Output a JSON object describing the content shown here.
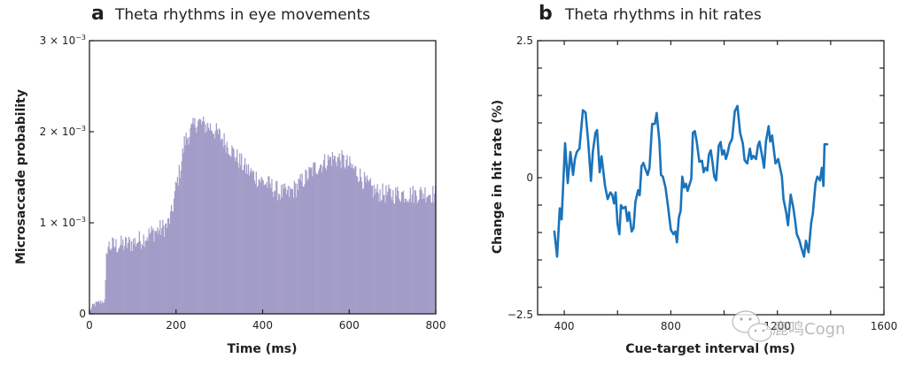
{
  "chart_data": [
    {
      "type": "bar",
      "panel_letter": "a",
      "title": "Theta rhythms in eye movements",
      "xlabel": "Time (ms)",
      "ylabel": "Microsaccade probability",
      "xlim": [
        0,
        800
      ],
      "ylim": [
        0,
        0.003
      ],
      "xticks": [
        0,
        200,
        400,
        600,
        800
      ],
      "xtick_labels": [
        "0",
        "200",
        "400",
        "600",
        "800"
      ],
      "yticks": [
        0,
        0.001,
        0.002,
        0.003
      ],
      "ytick_labels": [
        {
          "base": "0",
          "exp": ""
        },
        {
          "base": "1 × 10",
          "exp": "−3"
        },
        {
          "base": "2 × 10",
          "exp": "−3"
        },
        {
          "base": "3 × 10",
          "exp": "−3"
        }
      ],
      "bar_color": "#a29dc8",
      "bin_width_ms": 2,
      "profile_ms": [
        0,
        10,
        20,
        32,
        36,
        40,
        60,
        80,
        100,
        120,
        140,
        160,
        180,
        190,
        200,
        210,
        220,
        240,
        250,
        260,
        280,
        300,
        320,
        340,
        360,
        380,
        400,
        420,
        440,
        460,
        480,
        500,
        520,
        540,
        560,
        580,
        600,
        620,
        640,
        660,
        680,
        700,
        720,
        740,
        760,
        780,
        800
      ],
      "profile_values": [
        3e-05,
        0.0001,
        0.00012,
        0.00014,
        0.00014,
        0.00074,
        0.00075,
        0.00076,
        0.00078,
        0.00082,
        0.00088,
        0.00092,
        0.00097,
        0.0011,
        0.0014,
        0.0016,
        0.0019,
        0.00205,
        0.00212,
        0.00208,
        0.00205,
        0.00196,
        0.00185,
        0.00172,
        0.0016,
        0.00152,
        0.00145,
        0.0014,
        0.00133,
        0.00132,
        0.0014,
        0.0015,
        0.0016,
        0.00166,
        0.00171,
        0.0017,
        0.00163,
        0.00155,
        0.00142,
        0.00134,
        0.00132,
        0.00131,
        0.00132,
        0.00131,
        0.00132,
        0.00133,
        0.00131
      ]
    },
    {
      "type": "line",
      "panel_letter": "b",
      "title": "Theta rhythms in hit rates",
      "xlabel": "Cue-target interval (ms)",
      "ylabel": "Change in hit rate (%)",
      "xlim": [
        300,
        1600
      ],
      "ylim": [
        -2.5,
        2.5
      ],
      "xticks_major": [
        400,
        800,
        1200,
        1600
      ],
      "xtick_labels": [
        "400",
        "800",
        "1200",
        "1600"
      ],
      "xticks_minor": [
        600,
        1000,
        1400
      ],
      "yticks": [
        -2.5,
        -2,
        -1.5,
        -1,
        -0.5,
        0,
        0.5,
        1,
        1.5,
        2,
        2.5
      ],
      "ytick_labels": {
        "-2.5": "−2.5",
        "0": "0",
        "2.5": "2.5"
      },
      "line_color": "#1a73bb",
      "series": [
        {
          "name": "hit rate change",
          "x": [
            363,
            373,
            383,
            390,
            403,
            413,
            423,
            433,
            440,
            447,
            457,
            470,
            480,
            490,
            500,
            507,
            517,
            523,
            533,
            540,
            553,
            563,
            573,
            580,
            587,
            593,
            600,
            607,
            613,
            620,
            630,
            637,
            643,
            653,
            660,
            667,
            677,
            683,
            690,
            697,
            703,
            713,
            720,
            730,
            740,
            747,
            757,
            763,
            770,
            780,
            790,
            800,
            810,
            817,
            823,
            830,
            837,
            843,
            850,
            857,
            863,
            877,
            883,
            890,
            897,
            907,
            917,
            923,
            930,
            937,
            943,
            950,
            957,
            963,
            970,
            980,
            987,
            993,
            1000,
            1007,
            1013,
            1020,
            1030,
            1040,
            1050,
            1060,
            1070,
            1077,
            1087,
            1097,
            1103,
            1110,
            1120,
            1127,
            1133,
            1143,
            1150,
            1157,
            1167,
            1173,
            1180,
            1193,
            1203,
            1217,
            1223,
            1233,
            1240,
            1250,
            1260,
            1267,
            1273,
            1283,
            1290,
            1300,
            1307,
            1317,
            1327,
            1333,
            1343,
            1350,
            1360,
            1367,
            1373,
            1377,
            1387
          ],
          "y": [
            -0.98,
            -1.44,
            -0.56,
            -0.76,
            0.63,
            -0.1,
            0.47,
            0.05,
            0.34,
            0.47,
            0.53,
            1.23,
            1.19,
            0.66,
            -0.06,
            0.47,
            0.82,
            0.87,
            0.1,
            0.39,
            -0.15,
            -0.39,
            -0.27,
            -0.31,
            -0.47,
            -0.27,
            -0.84,
            -1.03,
            -0.5,
            -0.56,
            -0.53,
            -0.79,
            -0.63,
            -0.98,
            -0.92,
            -0.44,
            -0.23,
            -0.32,
            0.21,
            0.27,
            0.18,
            0.05,
            0.18,
            0.98,
            0.98,
            1.18,
            0.66,
            0.05,
            0.02,
            -0.18,
            -0.55,
            -0.95,
            -1.03,
            -0.98,
            -1.18,
            -0.73,
            -0.6,
            0.02,
            -0.18,
            -0.11,
            -0.24,
            -0.02,
            0.82,
            0.85,
            0.66,
            0.29,
            0.31,
            0.1,
            0.18,
            0.13,
            0.42,
            0.5,
            0.26,
            0.02,
            -0.05,
            0.58,
            0.65,
            0.42,
            0.5,
            0.34,
            0.44,
            0.61,
            0.71,
            1.21,
            1.31,
            0.82,
            0.63,
            0.32,
            0.26,
            0.53,
            0.34,
            0.4,
            0.34,
            0.58,
            0.66,
            0.39,
            0.18,
            0.66,
            0.94,
            0.66,
            0.77,
            0.26,
            0.34,
            0.02,
            -0.39,
            -0.63,
            -0.87,
            -0.31,
            -0.55,
            -0.79,
            -1.03,
            -1.15,
            -1.28,
            -1.44,
            -1.15,
            -1.36,
            -0.82,
            -0.66,
            -0.11,
            0.02,
            -0.05,
            0.18,
            -0.15,
            0.61,
            0.61
          ]
        }
      ]
    }
  ],
  "watermark": {
    "text": "鹿鸣Cogn",
    "icon": "wechat-icon"
  }
}
